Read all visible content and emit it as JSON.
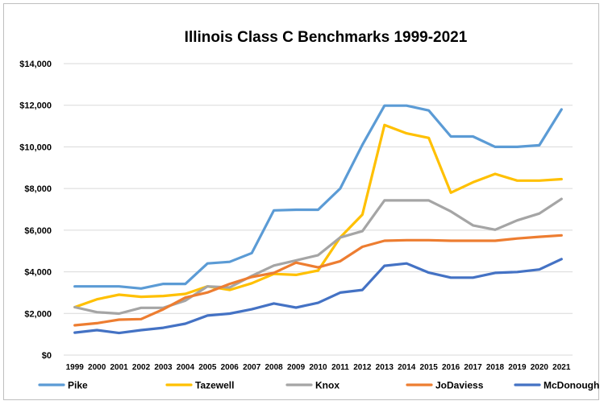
{
  "chart_data": {
    "type": "line",
    "title": "Illinois Class C Benchmarks 1999-2021",
    "xlabel": "",
    "ylabel": "",
    "ylim": [
      0,
      14000
    ],
    "yticks": [
      {
        "value": 0,
        "label": "$0"
      },
      {
        "value": 2000,
        "label": "$2,000"
      },
      {
        "value": 4000,
        "label": "$4,000"
      },
      {
        "value": 6000,
        "label": "$6,000"
      },
      {
        "value": 8000,
        "label": "$8,000"
      },
      {
        "value": 10000,
        "label": "$10,000"
      },
      {
        "value": 12000,
        "label": "$12,000"
      },
      {
        "value": 14000,
        "label": "$14,000"
      }
    ],
    "grid": true,
    "legend": "bottom",
    "categories": [
      "1999",
      "2000",
      "2001",
      "2002",
      "2003",
      "2004",
      "2005",
      "2006",
      "2007",
      "2008",
      "2009",
      "2010",
      "2011",
      "2012",
      "2013",
      "2014",
      "2015",
      "2016",
      "2017",
      "2018",
      "2019",
      "2020",
      "2021"
    ],
    "series": [
      {
        "name": "Pike",
        "color": "#5b9bd5",
        "values": [
          3300,
          3300,
          3300,
          3200,
          3420,
          3420,
          4400,
          4480,
          4900,
          6950,
          6980,
          6980,
          8000,
          10100,
          11980,
          11980,
          11750,
          10500,
          10500,
          10000,
          10000,
          10080,
          11800
        ]
      },
      {
        "name": "Tazewell",
        "color": "#ffc000",
        "values": [
          2300,
          2680,
          2900,
          2800,
          2840,
          2940,
          3300,
          3130,
          3450,
          3900,
          3850,
          4060,
          5650,
          6750,
          11050,
          10650,
          10430,
          7800,
          8300,
          8700,
          8380,
          8380,
          8450
        ]
      },
      {
        "name": "Knox",
        "color": "#a5a5a5",
        "values": [
          2300,
          2060,
          1990,
          2270,
          2270,
          2620,
          3300,
          3250,
          3800,
          4300,
          4550,
          4800,
          5650,
          5950,
          7430,
          7430,
          7430,
          6900,
          6230,
          6020,
          6470,
          6800,
          7500
        ]
      },
      {
        "name": "JoDaviess",
        "color": "#ed7d31",
        "values": [
          1430,
          1530,
          1700,
          1730,
          2200,
          2760,
          3010,
          3420,
          3750,
          3950,
          4440,
          4210,
          4510,
          5200,
          5490,
          5520,
          5520,
          5490,
          5490,
          5490,
          5600,
          5680,
          5750
        ]
      },
      {
        "name": "McDonough",
        "color": "#4472c4",
        "values": [
          1080,
          1200,
          1060,
          1200,
          1310,
          1510,
          1900,
          1990,
          2200,
          2480,
          2280,
          2510,
          3000,
          3130,
          4290,
          4400,
          3960,
          3720,
          3720,
          3950,
          3990,
          4110,
          4610
        ]
      }
    ]
  }
}
